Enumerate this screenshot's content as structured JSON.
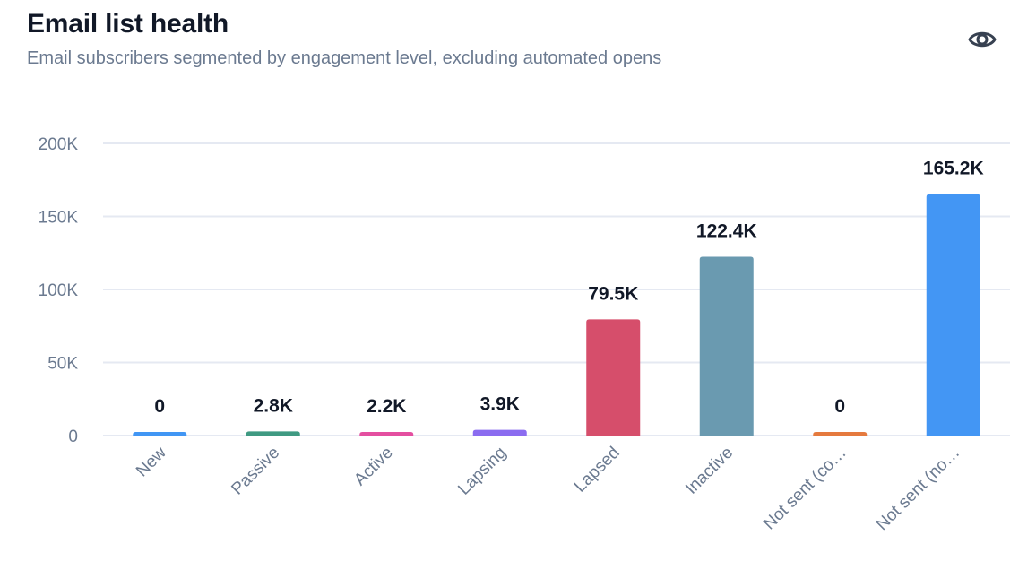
{
  "header": {
    "title": "Email list health",
    "subtitle": "Email subscribers segmented by engagement level, excluding automated opens",
    "visibility_icon": "eye-icon"
  },
  "chart_data": {
    "type": "bar",
    "title": "Email list health",
    "subtitle": "Email subscribers segmented by engagement level, excluding automated opens",
    "xlabel": "",
    "ylabel": "",
    "ylim": [
      0,
      200000
    ],
    "yticks": [
      0,
      50000,
      100000,
      150000,
      200000
    ],
    "ytick_labels": [
      "0",
      "50K",
      "100K",
      "150K",
      "200K"
    ],
    "grid": true,
    "categories": [
      "New",
      "Passive",
      "Active",
      "Lapsing",
      "Lapsed",
      "Inactive",
      "Not sent (co…",
      "Not sent (no…"
    ],
    "values": [
      0,
      2800,
      2200,
      3900,
      79500,
      122400,
      0,
      165200
    ],
    "data_labels": [
      "0",
      "2.8K",
      "2.2K",
      "3.9K",
      "79.5K",
      "122.4K",
      "0",
      "165.2K"
    ],
    "colors": [
      "#4196f4",
      "#3f9a82",
      "#e44fa0",
      "#8b6cf0",
      "#d64e6b",
      "#6a9ab0",
      "#e57a3e",
      "#4396f4"
    ]
  }
}
